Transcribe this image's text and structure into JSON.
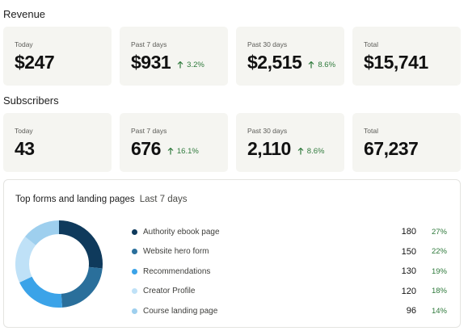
{
  "revenue": {
    "title": "Revenue",
    "cards": [
      {
        "label": "Today",
        "value": "$247",
        "delta": ""
      },
      {
        "label": "Past 7 days",
        "value": "$931",
        "delta": "3.2%"
      },
      {
        "label": "Past 30 days",
        "value": "$2,515",
        "delta": "8.6%"
      },
      {
        "label": "Total",
        "value": "$15,741",
        "delta": ""
      }
    ]
  },
  "subscribers": {
    "title": "Subscribers",
    "cards": [
      {
        "label": "Today",
        "value": "43",
        "delta": ""
      },
      {
        "label": "Past 7 days",
        "value": "676",
        "delta": "16.1%"
      },
      {
        "label": "Past 30 days",
        "value": "2,110",
        "delta": "8.6%"
      },
      {
        "label": "Total",
        "value": "67,237",
        "delta": ""
      }
    ]
  },
  "top_forms": {
    "title": "Top forms and landing pages",
    "period": "Last 7 days",
    "items": [
      {
        "name": "Authority ebook page",
        "count": "180",
        "percent": "27%",
        "color": "#0f3a5c"
      },
      {
        "name": "Website hero form",
        "count": "150",
        "percent": "22%",
        "color": "#2a6f9b"
      },
      {
        "name": "Recommendations",
        "count": "130",
        "percent": "19%",
        "color": "#3ba3e8"
      },
      {
        "name": "Creator Profile",
        "count": "120",
        "percent": "18%",
        "color": "#bfe1f7"
      },
      {
        "name": "Course landing page",
        "count": "96",
        "percent": "14%",
        "color": "#9ecfee"
      }
    ]
  },
  "chart_data": {
    "type": "pie",
    "categories": [
      "Authority ebook page",
      "Website hero form",
      "Recommendations",
      "Creator Profile",
      "Course landing page"
    ],
    "values": [
      180,
      150,
      130,
      120,
      96
    ],
    "title": "Top forms and landing pages",
    "subtitle": "Last 7 days"
  },
  "colors": {
    "positive": "#2f7a3c",
    "card_bg": "#f5f5f1"
  }
}
